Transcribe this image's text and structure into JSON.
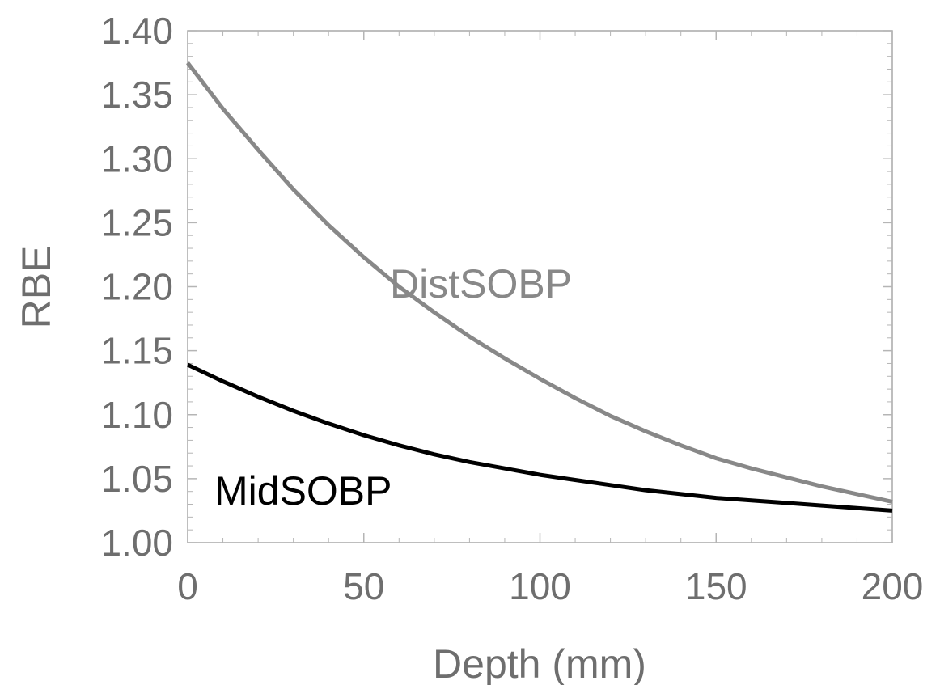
{
  "chart_data": {
    "type": "line",
    "xlabel": "Depth (mm)",
    "ylabel": "RBE",
    "xlim": [
      0,
      200
    ],
    "ylim": [
      1.0,
      1.4
    ],
    "x_ticks": [
      "0",
      "50",
      "100",
      "150",
      "200"
    ],
    "y_ticks": [
      "1.00",
      "1.05",
      "1.10",
      "1.15",
      "1.20",
      "1.25",
      "1.30",
      "1.35",
      "1.40"
    ],
    "grid": false,
    "series": [
      {
        "name": "DistSOBP",
        "color": "#888888",
        "x": [
          0,
          10,
          20,
          30,
          40,
          50,
          60,
          70,
          80,
          90,
          100,
          110,
          120,
          130,
          140,
          150,
          160,
          170,
          180,
          190,
          200
        ],
        "y": [
          1.375,
          1.339,
          1.307,
          1.276,
          1.248,
          1.223,
          1.2,
          1.18,
          1.161,
          1.144,
          1.128,
          1.113,
          1.099,
          1.087,
          1.076,
          1.066,
          1.058,
          1.051,
          1.044,
          1.038,
          1.032
        ]
      },
      {
        "name": "MidSOBP",
        "color": "#000000",
        "x": [
          0,
          10,
          20,
          30,
          40,
          50,
          60,
          70,
          80,
          90,
          100,
          110,
          120,
          130,
          140,
          150,
          160,
          170,
          180,
          190,
          200
        ],
        "y": [
          1.139,
          1.126,
          1.114,
          1.103,
          1.093,
          1.084,
          1.076,
          1.069,
          1.063,
          1.058,
          1.053,
          1.049,
          1.045,
          1.041,
          1.038,
          1.035,
          1.033,
          1.031,
          1.029,
          1.027,
          1.025
        ]
      }
    ]
  }
}
